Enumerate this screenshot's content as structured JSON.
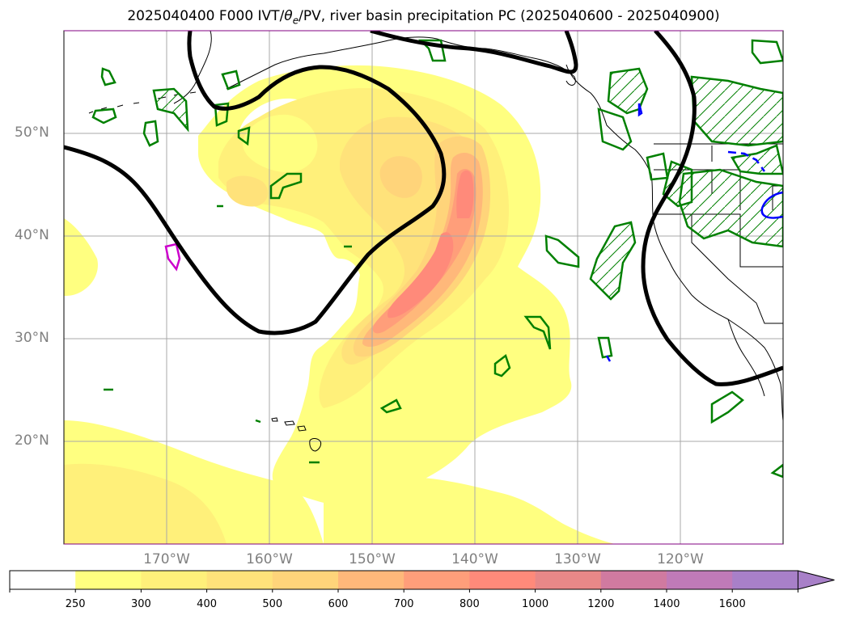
{
  "title": {
    "prefix": "2025040400 F000 IVT/",
    "theta": "θ",
    "theta_sub": "e",
    "suffix": "/PV, river basin precipitation PC (2025040600 - 2025040900)"
  },
  "map": {
    "projection": "plate carree",
    "lon_range": [
      -180,
      -110
    ],
    "lat_range": [
      10,
      60
    ],
    "grid": true,
    "lat_labels": [
      "50°N",
      "40°N",
      "30°N",
      "20°N"
    ],
    "lon_labels": [
      "170°W",
      "160°W",
      "150°W",
      "140°W",
      "130°W",
      "120°W"
    ],
    "ivt_colors": [
      "#ffff80",
      "#fff07a",
      "#ffe27a",
      "#ffd47a",
      "#ffb87a",
      "#ff9e7a",
      "#ff8a7a",
      "#f27a88",
      "#e07a95",
      "#c67ab0",
      "#b07ac0",
      "#a07ac8"
    ],
    "pv_contour_color": "#000000",
    "precip_contour_color": "#008000",
    "theta_e_contour_color": "#0000ff",
    "magenta_contour_color": "#cc00cc",
    "coastline_color": "#000000"
  },
  "colorbar": {
    "levels": [
      "250",
      "300",
      "400",
      "500",
      "600",
      "700",
      "800",
      "1000",
      "1200",
      "1400",
      "1600"
    ],
    "colors": [
      "#ffffff",
      "#ffff80",
      "#fff07a",
      "#ffe27a",
      "#ffd47a",
      "#ffb87a",
      "#ff9e7a",
      "#ff8a7a",
      "#e88888",
      "#d07aa0",
      "#c07ab8",
      "#a880c8"
    ],
    "extend": "max"
  }
}
